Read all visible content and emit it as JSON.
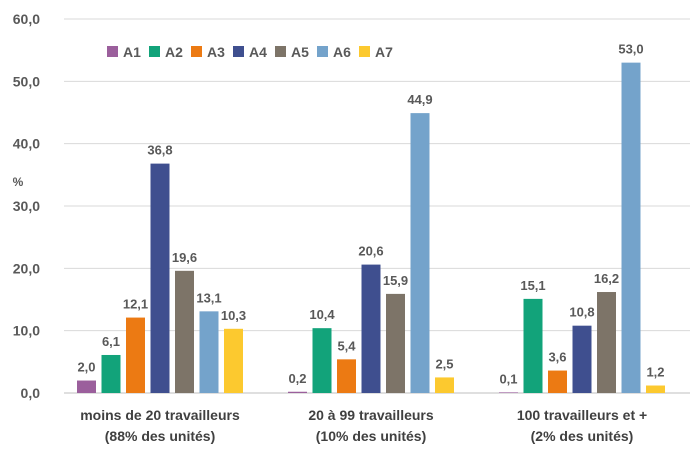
{
  "chart_data": {
    "type": "bar",
    "ylabel": "%",
    "ylim": [
      0,
      60
    ],
    "yticks": [
      "0,0",
      "10,0",
      "20,0",
      "30,0",
      "40,0",
      "50,0",
      "60,0"
    ],
    "grid": true,
    "legend_position": "top-left",
    "categories": [
      [
        "moins de 20 travailleurs",
        "(88% des unités)"
      ],
      [
        "20 à 99 travailleurs",
        "(10% des unités)"
      ],
      [
        "100 travailleurs et +",
        "(2% des unités)"
      ]
    ],
    "series": [
      {
        "name": "A1",
        "color": "#9b5f9c",
        "values": [
          2.0,
          0.2,
          0.1
        ],
        "labels": [
          "2,0",
          "0,2",
          "0,1"
        ]
      },
      {
        "name": "A2",
        "color": "#12a37a",
        "values": [
          6.1,
          10.4,
          15.1
        ],
        "labels": [
          "6,1",
          "10,4",
          "15,1"
        ]
      },
      {
        "name": "A3",
        "color": "#ec7a13",
        "values": [
          12.1,
          5.4,
          3.6
        ],
        "labels": [
          "12,1",
          "5,4",
          "3,6"
        ]
      },
      {
        "name": "A4",
        "color": "#3f4f8f",
        "values": [
          36.8,
          20.6,
          10.8
        ],
        "labels": [
          "36,8",
          "20,6",
          "10,8"
        ]
      },
      {
        "name": "A5",
        "color": "#7d7468",
        "values": [
          19.6,
          15.9,
          16.2
        ],
        "labels": [
          "19,6",
          "15,9",
          "16,2"
        ]
      },
      {
        "name": "A6",
        "color": "#74a3cb",
        "values": [
          13.1,
          44.9,
          53.0
        ],
        "labels": [
          "13,1",
          "44,9",
          "53,0"
        ]
      },
      {
        "name": "A7",
        "color": "#fcc92f",
        "values": [
          10.3,
          2.5,
          1.2
        ],
        "labels": [
          "10,3",
          "2,5",
          "1,2"
        ]
      }
    ]
  }
}
